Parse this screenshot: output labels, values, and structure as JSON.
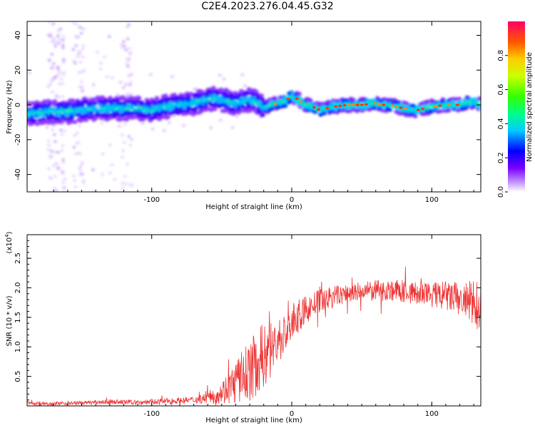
{
  "figure": {
    "title": "C2E4.2023.276.04.45.G32"
  },
  "chart_data": [
    {
      "type": "heatmap",
      "name": "spectrogram",
      "xlabel": "Height of straight line (km)",
      "ylabel": "Frequency (Hz)",
      "xlim": [
        -189,
        135
      ],
      "ylim": [
        -50,
        48
      ],
      "xticks": [
        -100,
        0,
        100
      ],
      "yticks": [
        -40,
        -20,
        0,
        20,
        40
      ],
      "ridge": {
        "x": [
          -189,
          -175,
          -160,
          -150,
          -140,
          -130,
          -120,
          -110,
          -100,
          -90,
          -80,
          -70,
          -60,
          -55,
          -50,
          -45,
          -40,
          -35,
          -30,
          -25,
          -20,
          -15,
          -10,
          -5,
          0,
          5,
          10,
          15,
          20,
          25,
          30,
          40,
          50,
          60,
          65,
          70,
          75,
          80,
          85,
          90,
          95,
          100,
          110,
          120,
          125,
          130,
          135
        ],
        "y": [
          -5,
          -4,
          -4,
          -3,
          -2,
          -2,
          -2,
          -2,
          -3,
          -1,
          0,
          1,
          3,
          4,
          3,
          2,
          1,
          2,
          3,
          2,
          -2,
          0,
          1,
          2,
          5,
          3,
          0,
          -1,
          -3,
          -2,
          -1,
          0,
          0,
          1,
          0,
          0,
          -1,
          -2,
          -3,
          -3,
          -2,
          -1,
          0,
          0,
          1,
          2,
          0
        ]
      },
      "colorbar": {
        "label": "Normalized spectral amplitude",
        "ticks": [
          0.0,
          0.2,
          0.4,
          0.6,
          0.8
        ],
        "range": [
          0,
          1
        ]
      }
    },
    {
      "type": "line",
      "name": "snr",
      "xlabel": "Height of straight line (km)",
      "ylabel": "SNR (10 * v/v)",
      "multiplier_label": "(x10",
      "multiplier_exp": "4",
      "xlim": [
        -189,
        135
      ],
      "ylim": [
        0,
        2.9
      ],
      "xticks": [
        -100,
        0,
        100
      ],
      "yticks": [
        0.5,
        1.0,
        1.5,
        2.0,
        2.5
      ],
      "line_color": "#ee3333",
      "envelope": {
        "x": [
          -189,
          -170,
          -150,
          -130,
          -110,
          -90,
          -80,
          -70,
          -60,
          -55,
          -50,
          -45,
          -40,
          -35,
          -30,
          -25,
          -20,
          -15,
          -10,
          -5,
          0,
          5,
          10,
          15,
          20,
          30,
          40,
          50,
          60,
          70,
          80,
          90,
          100,
          110,
          120,
          125,
          130,
          135
        ],
        "mean": [
          0.05,
          0.04,
          0.05,
          0.07,
          0.06,
          0.08,
          0.09,
          0.1,
          0.14,
          0.18,
          0.24,
          0.3,
          0.4,
          0.5,
          0.6,
          0.72,
          0.85,
          0.95,
          1.1,
          1.2,
          1.4,
          1.52,
          1.62,
          1.7,
          1.78,
          1.86,
          1.9,
          1.93,
          1.95,
          1.96,
          1.94,
          1.9,
          1.88,
          1.86,
          1.8,
          1.75,
          1.72,
          1.7
        ],
        "spread": [
          0.03,
          0.03,
          0.03,
          0.04,
          0.04,
          0.05,
          0.05,
          0.06,
          0.1,
          0.14,
          0.2,
          0.28,
          0.38,
          0.46,
          0.52,
          0.56,
          0.58,
          0.5,
          0.42,
          0.36,
          0.32,
          0.28,
          0.25,
          0.22,
          0.2,
          0.18,
          0.17,
          0.17,
          0.18,
          0.18,
          0.2,
          0.2,
          0.22,
          0.26,
          0.3,
          0.34,
          0.45,
          0.4
        ]
      }
    }
  ]
}
